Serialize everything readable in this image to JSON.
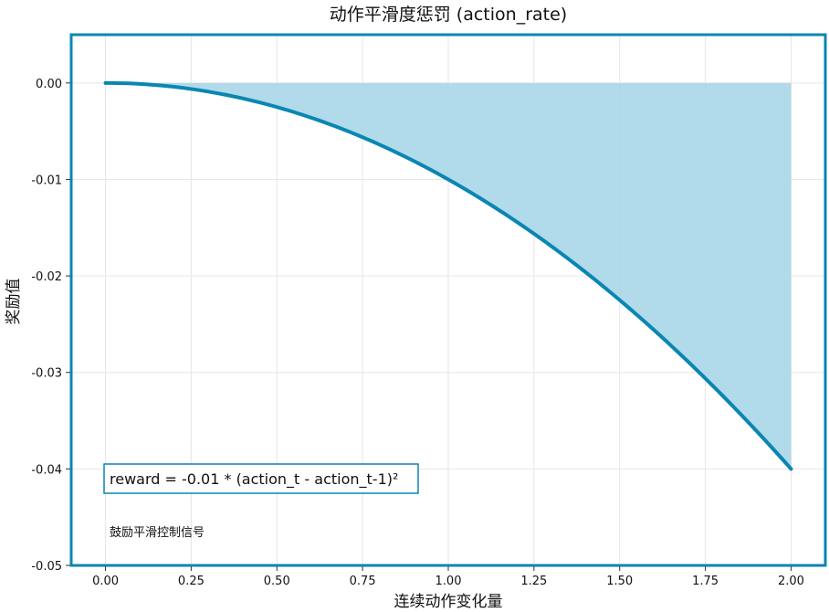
{
  "chart_data": {
    "type": "area",
    "title": "动作平滑度惩罚 (action_rate)",
    "xlabel": "连续动作变化量",
    "ylabel": "奖励值",
    "xlim": [
      -0.1,
      2.1
    ],
    "ylim": [
      -0.05,
      0.005
    ],
    "x_ticks": [
      "0.00",
      "0.25",
      "0.50",
      "0.75",
      "1.00",
      "1.25",
      "1.50",
      "1.75",
      "2.00"
    ],
    "y_ticks": [
      "0.00",
      "-0.01",
      "-0.02",
      "-0.03",
      "-0.04",
      "-0.05"
    ],
    "grid": true,
    "function": "reward = -0.01 * x^2",
    "x_range": [
      0,
      2
    ],
    "x": [
      0,
      0.25,
      0.5,
      0.75,
      1.0,
      1.25,
      1.5,
      1.75,
      2.0
    ],
    "y": [
      0,
      -0.000625,
      -0.0025,
      -0.005625,
      -0.01,
      -0.015625,
      -0.0225,
      -0.030625,
      -0.04
    ],
    "fill": "between curve and y=0",
    "line_color": "#0a86b3",
    "fill_color": "#a9d6e8",
    "frame_color": "#0a86b3",
    "annotation": "reward = -0.01 * (action_t - action_t-1)²",
    "note": "鼓励平滑控制信号"
  }
}
